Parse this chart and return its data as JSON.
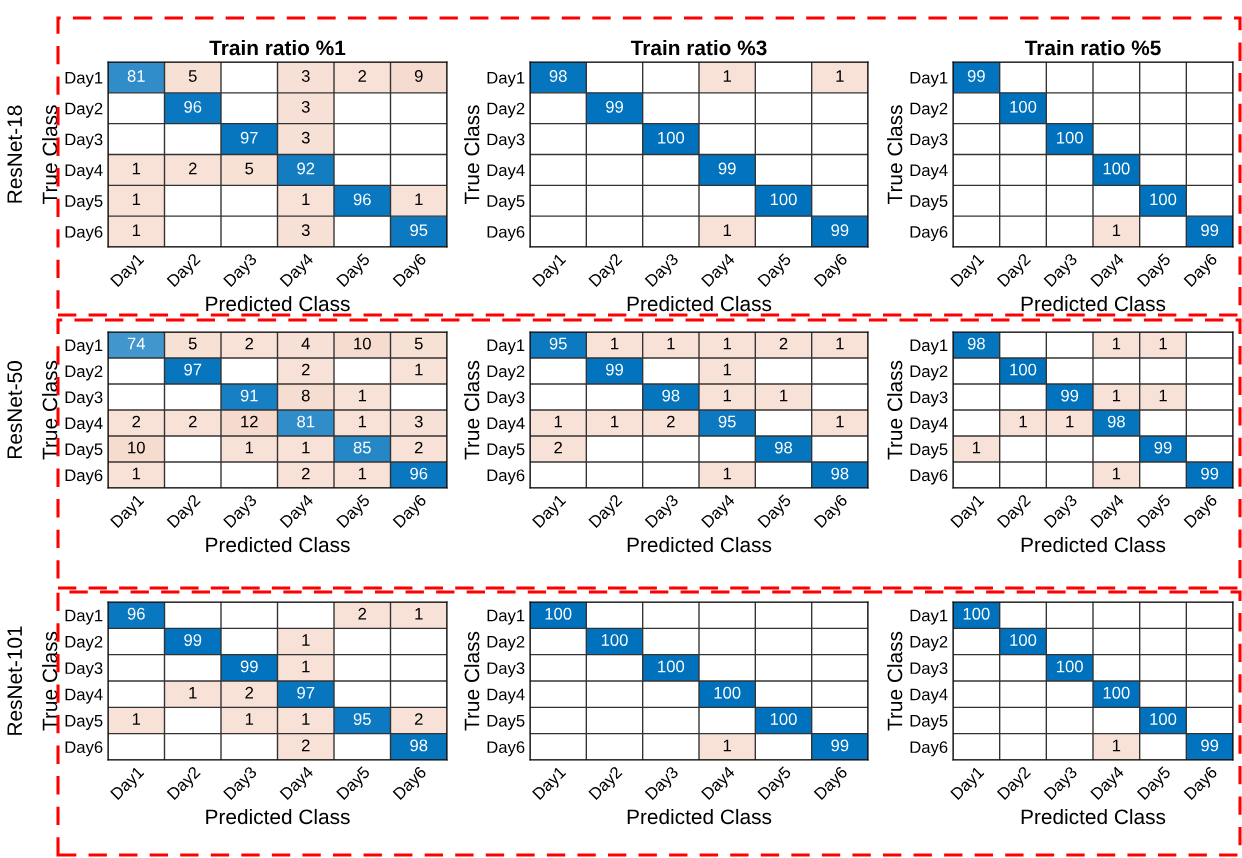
{
  "chart_data": [
    {
      "type": "heatmap",
      "data_labels": true,
      "title": "Train ratio %1",
      "xlabel": "Predicted Class",
      "ylabel": "True Class",
      "annotations": [
        "ResNet-18"
      ],
      "grid": true,
      "categories": [
        "Day1",
        "Day2",
        "Day3",
        "Day4",
        "Day5",
        "Day6"
      ],
      "y_categories": [
        "Day1",
        "Day2",
        "Day3",
        "Day4",
        "Day5",
        "Day6"
      ],
      "cells": [
        [
          81,
          5,
          null,
          3,
          2,
          9
        ],
        [
          null,
          96,
          null,
          3,
          null,
          null
        ],
        [
          null,
          null,
          97,
          3,
          null,
          null
        ],
        [
          1,
          2,
          5,
          92,
          null,
          null
        ],
        [
          1,
          null,
          null,
          1,
          96,
          1
        ],
        [
          1,
          null,
          null,
          3,
          null,
          95
        ]
      ]
    },
    {
      "type": "heatmap",
      "data_labels": true,
      "title": "Train ratio %3",
      "xlabel": "Predicted Class",
      "ylabel": "True Class",
      "grid": true,
      "categories": [
        "Day1",
        "Day2",
        "Day3",
        "Day4",
        "Day5",
        "Day6"
      ],
      "y_categories": [
        "Day1",
        "Day2",
        "Day3",
        "Day4",
        "Day5",
        "Day6"
      ],
      "cells": [
        [
          98,
          null,
          null,
          1,
          null,
          1
        ],
        [
          null,
          99,
          null,
          null,
          null,
          null
        ],
        [
          null,
          null,
          100,
          null,
          null,
          null
        ],
        [
          null,
          null,
          null,
          99,
          null,
          null
        ],
        [
          null,
          null,
          null,
          null,
          100,
          null
        ],
        [
          null,
          null,
          null,
          1,
          null,
          99
        ]
      ]
    },
    {
      "type": "heatmap",
      "data_labels": true,
      "title": "Train ratio %5",
      "xlabel": "Predicted Class",
      "ylabel": "True Class",
      "grid": true,
      "categories": [
        "Day1",
        "Day2",
        "Day3",
        "Day4",
        "Day5",
        "Day6"
      ],
      "y_categories": [
        "Day1",
        "Day2",
        "Day3",
        "Day4",
        "Day5",
        "Day6"
      ],
      "cells": [
        [
          99,
          null,
          null,
          null,
          null,
          null
        ],
        [
          null,
          100,
          null,
          null,
          null,
          null
        ],
        [
          null,
          null,
          100,
          null,
          null,
          null
        ],
        [
          null,
          null,
          null,
          100,
          null,
          null
        ],
        [
          null,
          null,
          null,
          null,
          100,
          null
        ],
        [
          null,
          null,
          null,
          1,
          null,
          99
        ]
      ]
    },
    {
      "type": "heatmap",
      "data_labels": true,
      "xlabel": "Predicted Class",
      "ylabel": "True Class",
      "annotations": [
        "ResNet-50"
      ],
      "grid": true,
      "categories": [
        "Day1",
        "Day2",
        "Day3",
        "Day4",
        "Day5",
        "Day6"
      ],
      "y_categories": [
        "Day1",
        "Day2",
        "Day3",
        "Day4",
        "Day5",
        "Day6"
      ],
      "cells": [
        [
          74,
          5,
          2,
          4,
          10,
          5
        ],
        [
          null,
          97,
          null,
          2,
          null,
          1
        ],
        [
          null,
          null,
          91,
          8,
          1,
          null
        ],
        [
          2,
          2,
          12,
          81,
          1,
          3
        ],
        [
          10,
          null,
          1,
          1,
          85,
          2
        ],
        [
          1,
          null,
          null,
          2,
          1,
          96
        ]
      ]
    },
    {
      "type": "heatmap",
      "xlabel": "Predicted Class",
      "ylabel": "True Class",
      "grid": true,
      "categories": [
        "Day1",
        "Day2",
        "Day3",
        "Day4",
        "Day5",
        "Day6"
      ],
      "y_categories": [
        "Day1",
        "Day2",
        "Day3",
        "Day4",
        "Day5",
        "Day6"
      ],
      "data_labels": true,
      "cells": [
        [
          95,
          1,
          1,
          1,
          2,
          1
        ],
        [
          null,
          99,
          null,
          1,
          null,
          null
        ],
        [
          null,
          null,
          98,
          1,
          1,
          null
        ],
        [
          1,
          1,
          2,
          95,
          null,
          1
        ],
        [
          2,
          null,
          null,
          null,
          98,
          null
        ],
        [
          null,
          null,
          null,
          1,
          null,
          98
        ]
      ]
    },
    {
      "type": "heatmap",
      "xlabel": "Predicted Class",
      "ylabel": "True Class",
      "grid": true,
      "categories": [
        "Day1",
        "Day2",
        "Day3",
        "Day4",
        "Day5",
        "Day6"
      ],
      "y_categories": [
        "Day1",
        "Day2",
        "Day3",
        "Day4",
        "Day5",
        "Day6"
      ],
      "data_labels": true,
      "cells": [
        [
          98,
          null,
          null,
          1,
          1,
          null
        ],
        [
          null,
          100,
          null,
          null,
          null,
          null
        ],
        [
          null,
          null,
          99,
          1,
          1,
          null
        ],
        [
          null,
          1,
          1,
          98,
          null,
          null
        ],
        [
          1,
          null,
          null,
          null,
          99,
          null
        ],
        [
          null,
          null,
          null,
          1,
          null,
          99
        ]
      ]
    },
    {
      "type": "heatmap",
      "data_labels": true,
      "xlabel": "Predicted Class",
      "ylabel": "True Class",
      "annotations": [
        "ResNet-101"
      ],
      "grid": true,
      "categories": [
        "Day1",
        "Day2",
        "Day3",
        "Day4",
        "Day5",
        "Day6"
      ],
      "y_categories": [
        "Day1",
        "Day2",
        "Day3",
        "Day4",
        "Day5",
        "Day6"
      ],
      "cells": [
        [
          96,
          null,
          null,
          null,
          2,
          1
        ],
        [
          null,
          99,
          null,
          1,
          null,
          null
        ],
        [
          null,
          null,
          99,
          1,
          null,
          null
        ],
        [
          null,
          1,
          2,
          97,
          null,
          null
        ],
        [
          1,
          null,
          1,
          1,
          95,
          2
        ],
        [
          null,
          null,
          null,
          2,
          null,
          98
        ]
      ]
    },
    {
      "type": "heatmap",
      "xlabel": "Predicted Class",
      "ylabel": "True Class",
      "grid": true,
      "categories": [
        "Day1",
        "Day2",
        "Day3",
        "Day4",
        "Day5",
        "Day6"
      ],
      "y_categories": [
        "Day1",
        "Day2",
        "Day3",
        "Day4",
        "Day5",
        "Day6"
      ],
      "data_labels": true,
      "cells": [
        [
          100,
          null,
          null,
          null,
          null,
          null
        ],
        [
          null,
          100,
          null,
          null,
          null,
          null
        ],
        [
          null,
          null,
          100,
          null,
          null,
          null
        ],
        [
          null,
          null,
          null,
          100,
          null,
          null
        ],
        [
          null,
          null,
          null,
          null,
          100,
          null
        ],
        [
          null,
          null,
          null,
          1,
          null,
          99
        ]
      ]
    },
    {
      "type": "heatmap",
      "data_labels": true,
      "xlabel": "Predicted Class",
      "ylabel": "True Class",
      "grid": true,
      "categories": [
        "Day1",
        "Day2",
        "Day3",
        "Day4",
        "Day5",
        "Day6"
      ],
      "y_categories": [
        "Day1",
        "Day2",
        "Day3",
        "Day4",
        "Day5",
        "Day6"
      ],
      "cells": [
        [
          100,
          null,
          null,
          null,
          null,
          null
        ],
        [
          null,
          100,
          null,
          null,
          null,
          null
        ],
        [
          null,
          null,
          100,
          null,
          null,
          null
        ],
        [
          null,
          null,
          null,
          100,
          null,
          null
        ],
        [
          null,
          null,
          null,
          null,
          100,
          null
        ],
        [
          null,
          null,
          null,
          1,
          null,
          99
        ]
      ]
    }
  ]
}
